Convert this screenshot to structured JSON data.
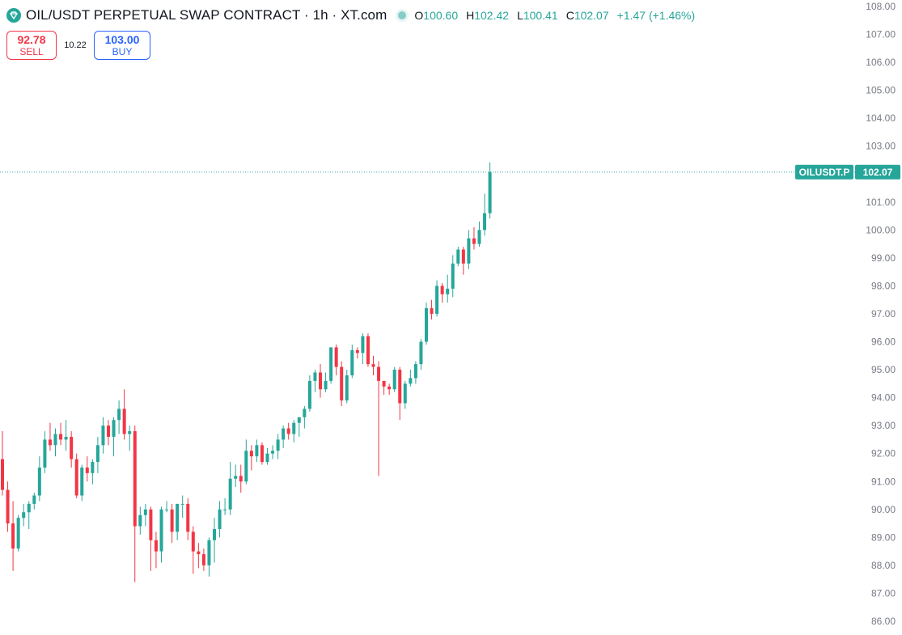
{
  "header": {
    "title": "OIL/USDT PERPETUAL SWAP CONTRACT · 1h · XT.com",
    "ohlc": [
      {
        "key": "O",
        "value": "100.60"
      },
      {
        "key": "H",
        "value": "102.42"
      },
      {
        "key": "L",
        "value": "100.41"
      },
      {
        "key": "C",
        "value": "102.07"
      }
    ],
    "change": "+1.47 (+1.46%)"
  },
  "trade": {
    "sell_price": "92.78",
    "sell_label": "SELL",
    "spread": "10.22",
    "buy_price": "103.00",
    "buy_label": "BUY"
  },
  "price_tag": {
    "symbol": "OILUSDT.P",
    "price": "102.07"
  },
  "colors": {
    "up": "#26a69a",
    "down": "#f23645",
    "axis_text": "#787b86"
  },
  "chart_data": {
    "type": "candlestick",
    "symbol": "OILUSDT.P",
    "interval": "1h",
    "ylim": [
      85.6,
      108.2
    ],
    "yticks": [
      "86.00",
      "87.00",
      "88.00",
      "89.00",
      "90.00",
      "91.00",
      "92.00",
      "93.00",
      "94.00",
      "95.00",
      "96.00",
      "97.00",
      "98.00",
      "99.00",
      "100.00",
      "101.00",
      "102.00",
      "103.00",
      "104.00",
      "105.00",
      "106.00",
      "107.00",
      "108.00"
    ],
    "last_price": 102.07,
    "candles": [
      [
        91.8,
        92.8,
        90.5,
        90.7
      ],
      [
        90.7,
        91.0,
        89.2,
        89.5
      ],
      [
        89.5,
        90.3,
        87.8,
        88.6
      ],
      [
        88.6,
        89.8,
        88.5,
        89.7
      ],
      [
        89.7,
        90.2,
        89.4,
        89.9
      ],
      [
        89.9,
        90.3,
        89.3,
        90.2
      ],
      [
        90.2,
        90.6,
        90.0,
        90.5
      ],
      [
        90.5,
        91.9,
        90.3,
        91.5
      ],
      [
        91.5,
        92.8,
        91.3,
        92.5
      ],
      [
        92.5,
        93.1,
        92.1,
        92.3
      ],
      [
        92.3,
        92.9,
        91.9,
        92.7
      ],
      [
        92.7,
        93.1,
        92.3,
        92.5
      ],
      [
        92.5,
        93.2,
        92.1,
        92.6
      ],
      [
        92.6,
        92.8,
        91.5,
        91.8
      ],
      [
        91.8,
        92.0,
        90.4,
        90.5
      ],
      [
        90.5,
        91.6,
        90.3,
        91.5
      ],
      [
        91.5,
        91.9,
        91.0,
        91.3
      ],
      [
        91.3,
        91.8,
        90.9,
        91.7
      ],
      [
        91.7,
        92.6,
        91.3,
        92.3
      ],
      [
        92.3,
        93.3,
        92.0,
        93.0
      ],
      [
        93.0,
        93.2,
        92.3,
        92.6
      ],
      [
        92.6,
        93.3,
        91.9,
        93.2
      ],
      [
        93.2,
        93.9,
        92.7,
        93.6
      ],
      [
        93.6,
        94.3,
        92.5,
        92.7
      ],
      [
        92.7,
        93.0,
        92.1,
        92.8
      ],
      [
        92.8,
        93.0,
        87.4,
        89.4
      ],
      [
        89.4,
        90.1,
        89.1,
        89.8
      ],
      [
        89.8,
        90.2,
        89.4,
        90.0
      ],
      [
        90.0,
        90.1,
        87.8,
        88.9
      ],
      [
        88.9,
        89.2,
        87.9,
        88.5
      ],
      [
        88.5,
        90.1,
        88.1,
        90.0
      ],
      [
        90.0,
        90.3,
        89.9,
        90.0
      ],
      [
        90.0,
        90.2,
        88.8,
        89.2
      ],
      [
        89.2,
        90.2,
        88.9,
        90.2
      ],
      [
        90.2,
        90.5,
        89.7,
        90.2
      ],
      [
        90.2,
        90.4,
        88.9,
        89.2
      ],
      [
        89.2,
        89.4,
        87.7,
        88.5
      ],
      [
        88.5,
        88.8,
        87.9,
        88.4
      ],
      [
        88.4,
        88.6,
        87.8,
        88.0
      ],
      [
        88.0,
        89.0,
        87.6,
        88.9
      ],
      [
        88.9,
        89.7,
        88.1,
        89.3
      ],
      [
        89.3,
        90.3,
        89.0,
        90.0
      ],
      [
        90.0,
        90.4,
        89.8,
        90.0
      ],
      [
        90.0,
        91.7,
        89.8,
        91.1
      ],
      [
        91.1,
        91.6,
        90.8,
        91.2
      ],
      [
        91.2,
        91.6,
        90.6,
        91.0
      ],
      [
        91.0,
        92.5,
        90.9,
        92.1
      ],
      [
        92.1,
        92.3,
        91.4,
        91.9
      ],
      [
        91.9,
        92.5,
        91.7,
        92.3
      ],
      [
        92.3,
        92.4,
        91.6,
        91.7
      ],
      [
        91.7,
        92.2,
        91.6,
        92.0
      ],
      [
        92.0,
        92.3,
        91.8,
        92.1
      ],
      [
        92.1,
        92.7,
        91.8,
        92.5
      ],
      [
        92.5,
        93.0,
        92.2,
        92.9
      ],
      [
        92.9,
        93.1,
        92.5,
        92.7
      ],
      [
        92.7,
        93.2,
        92.4,
        93.1
      ],
      [
        93.1,
        93.3,
        92.6,
        93.3
      ],
      [
        93.3,
        93.7,
        92.9,
        93.6
      ],
      [
        93.6,
        94.8,
        93.5,
        94.6
      ],
      [
        94.6,
        95.0,
        94.2,
        94.9
      ],
      [
        94.9,
        95.2,
        94.0,
        94.3
      ],
      [
        94.3,
        94.9,
        94.2,
        94.6
      ],
      [
        94.6,
        95.8,
        94.5,
        95.8
      ],
      [
        95.8,
        95.9,
        94.8,
        95.1
      ],
      [
        95.1,
        95.3,
        93.7,
        93.9
      ],
      [
        93.9,
        95.0,
        93.8,
        94.8
      ],
      [
        94.8,
        95.9,
        94.7,
        95.7
      ],
      [
        95.7,
        95.8,
        95.4,
        95.6
      ],
      [
        95.6,
        96.3,
        95.2,
        96.2
      ],
      [
        96.2,
        96.3,
        95.1,
        95.2
      ],
      [
        95.2,
        95.5,
        94.8,
        95.1
      ],
      [
        95.1,
        95.3,
        91.2,
        94.6
      ],
      [
        94.6,
        94.6,
        94.1,
        94.4
      ],
      [
        94.4,
        94.5,
        94.1,
        94.3
      ],
      [
        94.3,
        95.1,
        94.2,
        95.0
      ],
      [
        95.0,
        95.1,
        93.2,
        93.8
      ],
      [
        93.8,
        94.6,
        93.6,
        94.5
      ],
      [
        94.5,
        95.0,
        94.4,
        94.7
      ],
      [
        94.7,
        95.3,
        94.5,
        95.2
      ],
      [
        95.2,
        96.1,
        95.0,
        96.0
      ],
      [
        96.0,
        97.4,
        95.9,
        97.2
      ],
      [
        97.2,
        97.5,
        96.8,
        97.0
      ],
      [
        97.0,
        98.2,
        96.9,
        98.0
      ],
      [
        98.0,
        98.1,
        97.4,
        97.7
      ],
      [
        97.7,
        98.4,
        97.4,
        97.9
      ],
      [
        97.9,
        99.1,
        97.6,
        98.8
      ],
      [
        98.8,
        99.4,
        98.7,
        99.3
      ],
      [
        99.3,
        99.4,
        98.4,
        98.8
      ],
      [
        98.8,
        100.0,
        98.6,
        99.7
      ],
      [
        99.7,
        100.1,
        99.3,
        99.5
      ],
      [
        99.5,
        100.3,
        99.4,
        100.0
      ],
      [
        100.0,
        101.3,
        99.8,
        100.6
      ],
      [
        100.6,
        102.42,
        100.41,
        102.07
      ]
    ]
  }
}
